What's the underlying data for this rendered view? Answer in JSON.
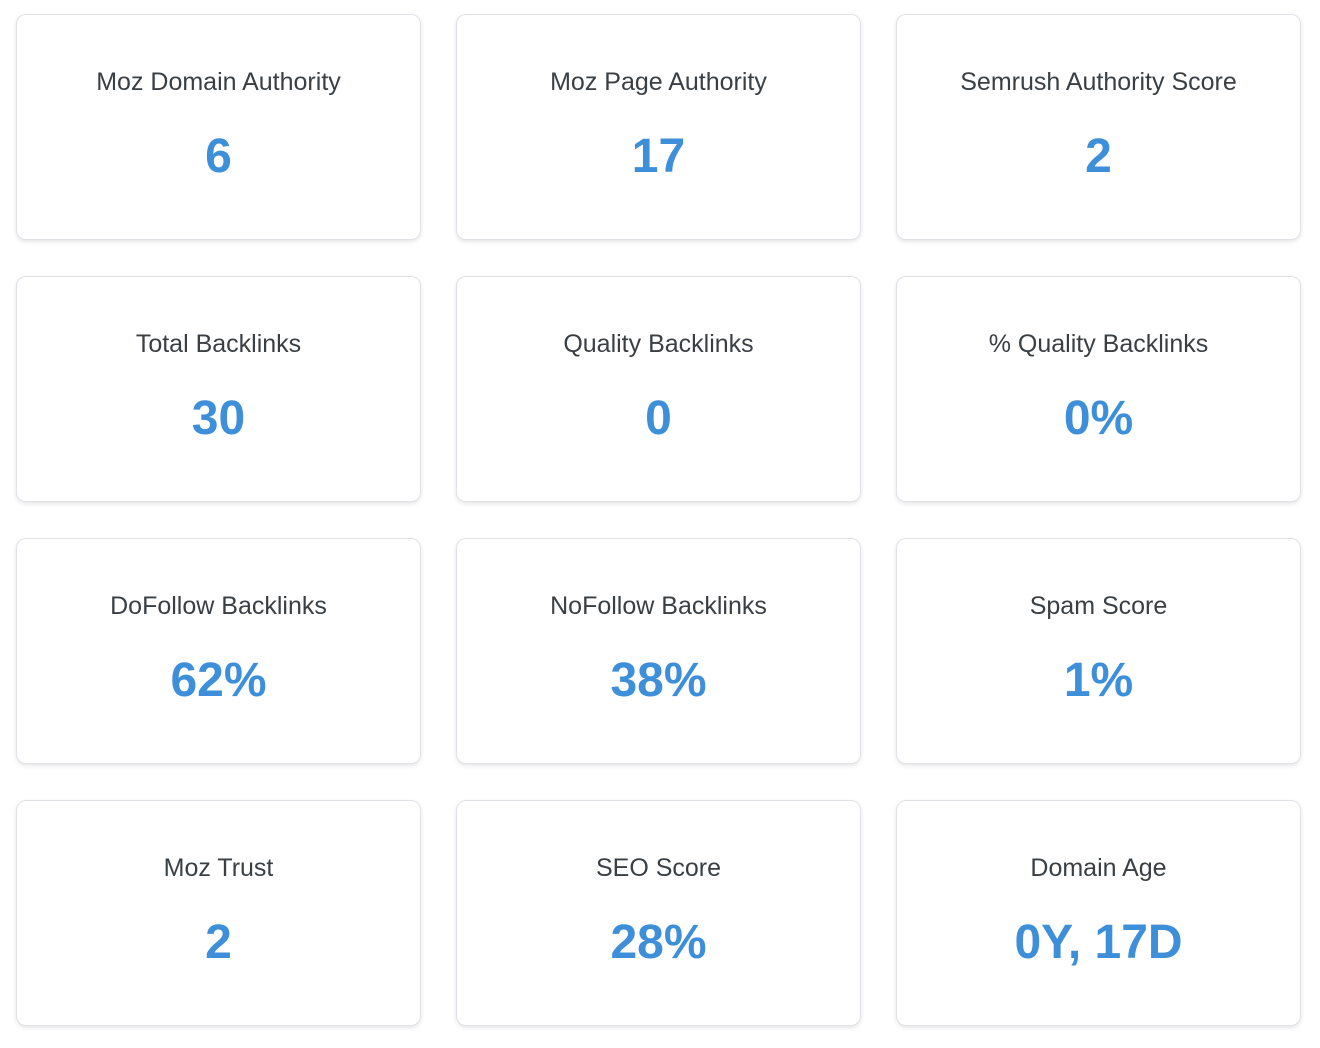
{
  "metrics": [
    {
      "label": "Moz Domain Authority",
      "value": "6"
    },
    {
      "label": "Moz Page Authority",
      "value": "17"
    },
    {
      "label": "Semrush Authority Score",
      "value": "2"
    },
    {
      "label": "Total Backlinks",
      "value": "30"
    },
    {
      "label": "Quality Backlinks",
      "value": "0"
    },
    {
      "label": "% Quality Backlinks",
      "value": "0%"
    },
    {
      "label": "DoFollow Backlinks",
      "value": "62%"
    },
    {
      "label": "NoFollow Backlinks",
      "value": "38%"
    },
    {
      "label": "Spam Score",
      "value": "1%"
    },
    {
      "label": "Moz Trust",
      "value": "2"
    },
    {
      "label": "SEO Score",
      "value": "28%"
    },
    {
      "label": "Domain Age",
      "value": "0Y, 17D"
    }
  ],
  "colors": {
    "value": "#3e8fda",
    "label": "#3a3f44",
    "card_border": "#dfe3e8",
    "background": "#ffffff"
  }
}
